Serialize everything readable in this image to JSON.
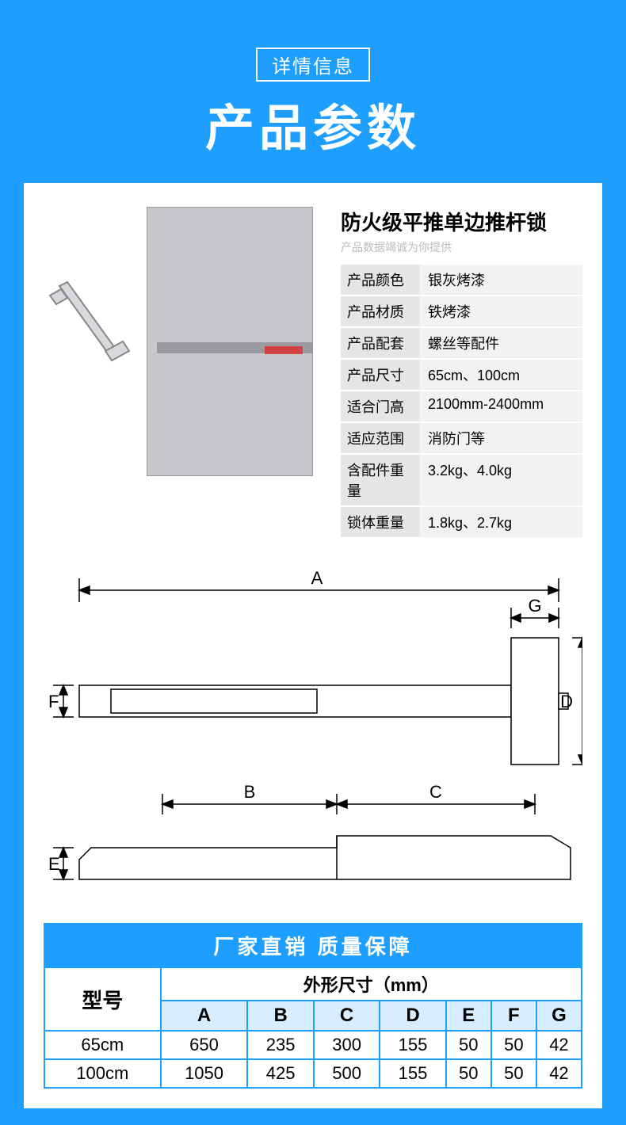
{
  "header": {
    "badge": "详情信息",
    "title": "产品参数"
  },
  "product": {
    "title": "防火级平推单边推杆锁",
    "subtitle": "产品数据竭诚为你提供",
    "specs": [
      {
        "label": "产品颜色",
        "value": "银灰烤漆"
      },
      {
        "label": "产品材质",
        "value": "铁烤漆"
      },
      {
        "label": "产品配套",
        "value": "螺丝等配件"
      },
      {
        "label": "产品尺寸",
        "value": "65cm、100cm"
      },
      {
        "label": "适合门高",
        "value": "2100mm-2400mm"
      },
      {
        "label": "适应范围",
        "value": "消防门等"
      },
      {
        "label": "含配件重量",
        "value": "3.2kg、4.0kg"
      },
      {
        "label": "锁体重量",
        "value": "1.8kg、2.7kg"
      }
    ]
  },
  "diagram": {
    "labels": {
      "A": "A",
      "B": "B",
      "C": "C",
      "D": "D",
      "E": "E",
      "F": "F",
      "G": "G"
    },
    "stroke": "#000000",
    "fill": "#f6f6f6"
  },
  "dimTable": {
    "banner": "厂家直销 质量保障",
    "modelHeader": "型号",
    "sizeHeader": "外形尺寸（mm）",
    "cols": [
      "A",
      "B",
      "C",
      "D",
      "E",
      "F",
      "G"
    ],
    "rows": [
      {
        "model": "65cm",
        "vals": [
          "650",
          "235",
          "300",
          "155",
          "50",
          "50",
          "42"
        ]
      },
      {
        "model": "100cm",
        "vals": [
          "1050",
          "425",
          "500",
          "155",
          "50",
          "50",
          "42"
        ]
      }
    ]
  },
  "colors": {
    "brand": "#1e9fff",
    "panel": "#ffffff",
    "colhead": "#d8eeff"
  }
}
